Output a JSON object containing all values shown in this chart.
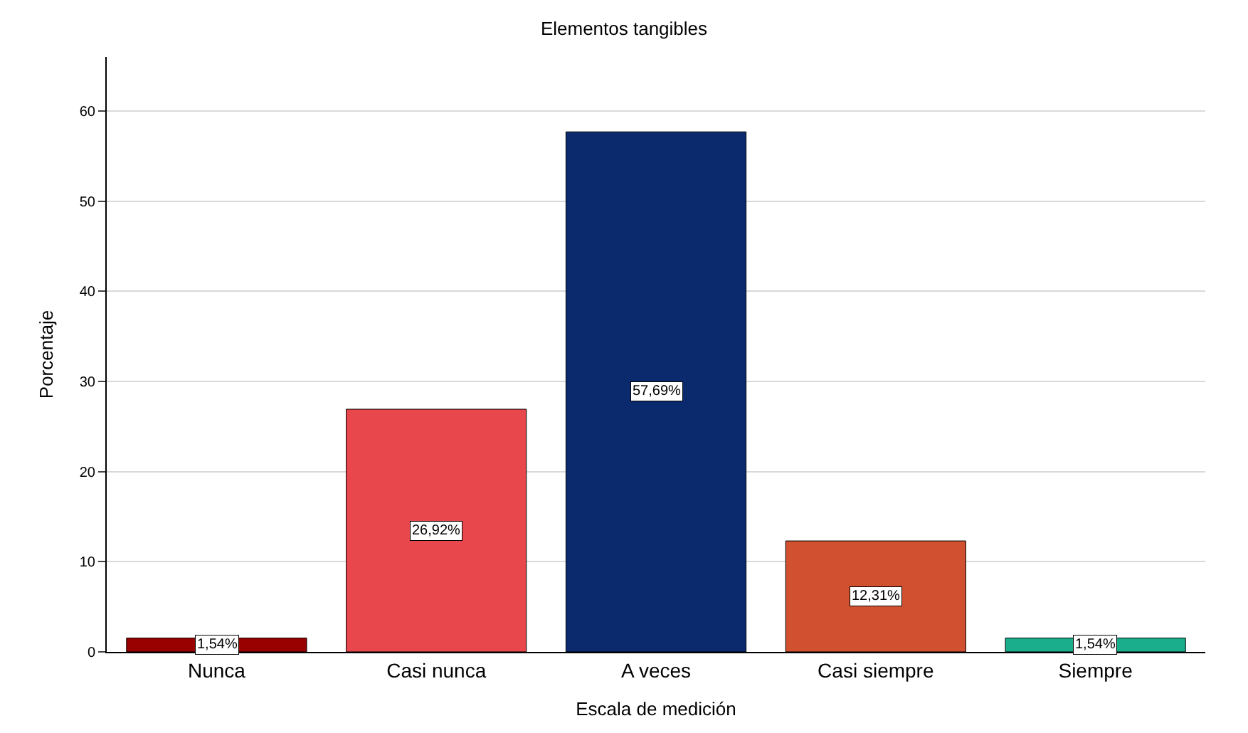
{
  "chart_data": {
    "type": "bar",
    "title": "Elementos tangibles",
    "xlabel": "Escala de medición",
    "ylabel": "Porcentaje",
    "categories": [
      "Nunca",
      "Casi nunca",
      "A veces",
      "Casi siempre",
      "Siempre"
    ],
    "values": [
      1.54,
      26.92,
      57.69,
      12.31,
      1.54
    ],
    "colors": [
      "#990000",
      "#e8474c",
      "#0b2a6e",
      "#d0502f",
      "#1aae8c"
    ],
    "value_labels": [
      "1,54%",
      "26,92%",
      "57,69%",
      "12,31%",
      "1,54%"
    ],
    "ylim": [
      0,
      66
    ],
    "yticks": [
      0,
      10,
      20,
      30,
      40,
      50,
      60
    ],
    "grid": "y"
  }
}
